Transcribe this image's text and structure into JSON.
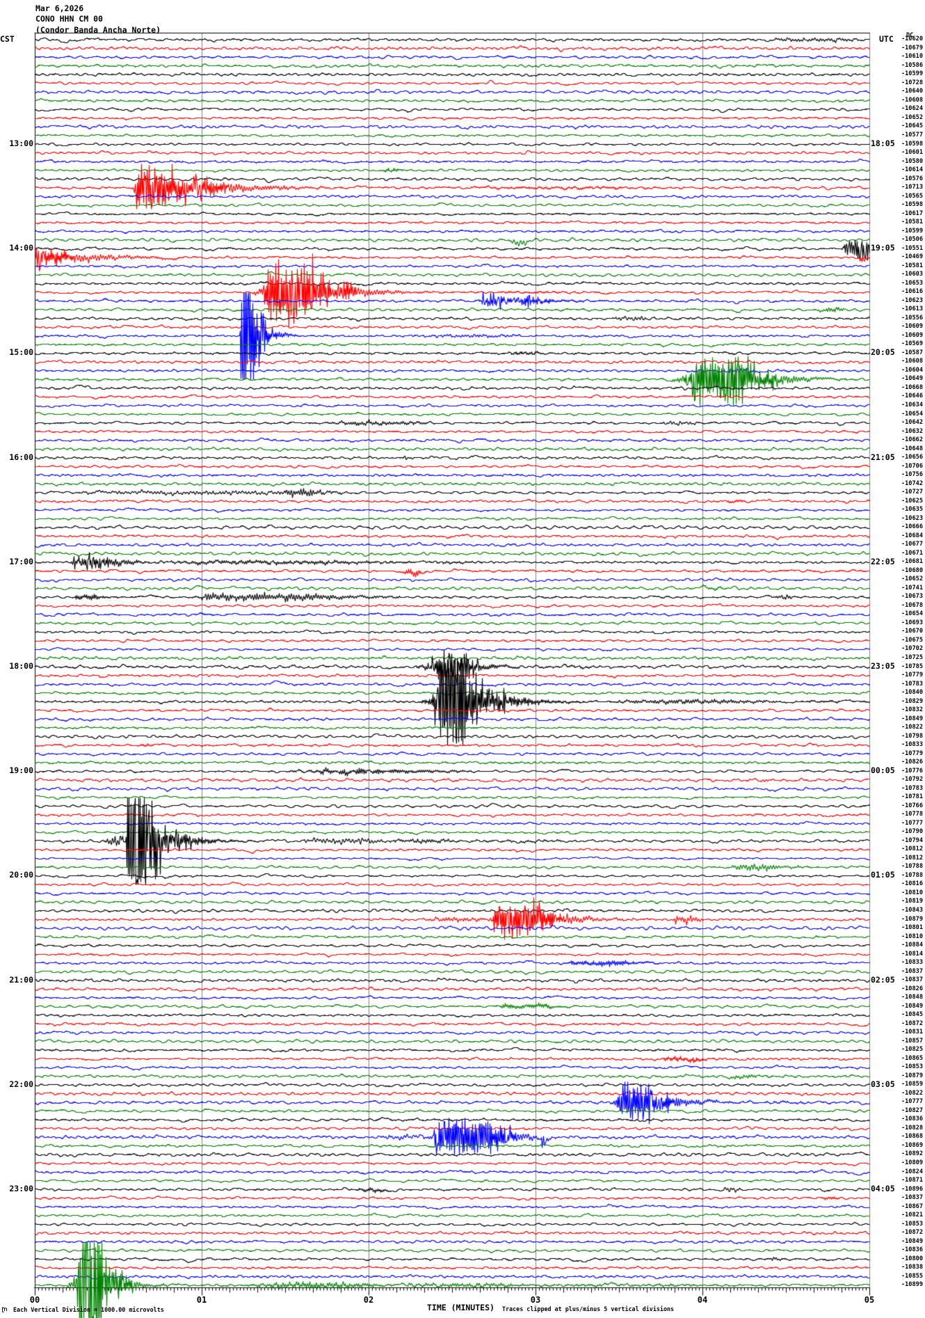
{
  "title": {
    "date": "Mar 6,2026",
    "station_code": "CONO HHN CM 00",
    "station_name": "(Condor Banda Ancha Norte)"
  },
  "left_axis": {
    "timezone": "CST",
    "hour_labels": [
      {
        "row": 12,
        "text": "13:00"
      },
      {
        "row": 24,
        "text": "14:00"
      },
      {
        "row": 36,
        "text": "15:00"
      },
      {
        "row": 48,
        "text": "16:00"
      },
      {
        "row": 60,
        "text": "17:00"
      },
      {
        "row": 72,
        "text": "18:00"
      },
      {
        "row": 84,
        "text": "19:00"
      },
      {
        "row": 96,
        "text": "20:00"
      },
      {
        "row": 108,
        "text": "21:00"
      },
      {
        "row": 120,
        "text": "22:00"
      },
      {
        "row": 132,
        "text": "23:00"
      }
    ]
  },
  "right_axis": {
    "timezone": "UTC",
    "dc_header": "DC",
    "hour_labels": [
      {
        "row": 12,
        "text": "18:05"
      },
      {
        "row": 24,
        "text": "19:05"
      },
      {
        "row": 36,
        "text": "20:05"
      },
      {
        "row": 48,
        "text": "21:05"
      },
      {
        "row": 60,
        "text": "22:05"
      },
      {
        "row": 72,
        "text": "23:05"
      },
      {
        "row": 84,
        "text": "00:05"
      },
      {
        "row": 96,
        "text": "01:05"
      },
      {
        "row": 108,
        "text": "02:05"
      },
      {
        "row": 120,
        "text": "03:05"
      },
      {
        "row": 132,
        "text": "04:05"
      }
    ],
    "dc_values": [
      -10620,
      -10679,
      -10610,
      -10586,
      -10599,
      -10728,
      -10640,
      -10608,
      -10624,
      -10652,
      -10645,
      -10577,
      -10598,
      -10601,
      -10580,
      -10614,
      -10576,
      -10713,
      -10565,
      -10598,
      -10617,
      -10581,
      -10599,
      -10506,
      -10551,
      -10469,
      -10581,
      -10603,
      -10653,
      -10616,
      -10623,
      -10613,
      -10556,
      -10609,
      -10609,
      -10569,
      -10587,
      -10608,
      -10604,
      -10649,
      -10668,
      -10646,
      -10634,
      -10654,
      -10642,
      -10632,
      -10662,
      -10648,
      -10656,
      -10706,
      -10756,
      -10742,
      -10727,
      -10625,
      -10635,
      -10623,
      -10666,
      -10684,
      -10677,
      -10671,
      -10681,
      -10680,
      -10652,
      -10741,
      -10673,
      -10678,
      -10654,
      -10693,
      -10670,
      -10675,
      -10702,
      -10725,
      -10785,
      -10779,
      -10783,
      -10840,
      -10829,
      -10832,
      -10849,
      -10822,
      -10798,
      -10833,
      -10779,
      -10826,
      -10776,
      -10792,
      -10783,
      -10781,
      -10766,
      -10778,
      -10777,
      -10790,
      -10794,
      -10812,
      -10812,
      -10788,
      -10788,
      -10816,
      -10810,
      -10819,
      -10843,
      -10879,
      -10801,
      -10810,
      -10884,
      -10814,
      -10833,
      -10837,
      -10837,
      -10826,
      -10848,
      -10849,
      -10845,
      -10872,
      -10831,
      -10857,
      -10825,
      -10865,
      -10853,
      -10879,
      -10859,
      -10822,
      -10777,
      -10827,
      -10836,
      -10828,
      -10868,
      -10869,
      -10892,
      -10809,
      -10824,
      -10871,
      -10896,
      -10837,
      -10867,
      -10821,
      -10853,
      -10872,
      -10849,
      -10836,
      -10800,
      -10838,
      -10855,
      -10899
    ]
  },
  "x_axis": {
    "title": "TIME (MINUTES)",
    "minute_labels": [
      "00",
      "01",
      "02",
      "03",
      "04",
      "05"
    ]
  },
  "footer": {
    "left": "Each Vertical Division = 1000.00 microvolts",
    "right": "Traces clipped at plus/minus 5 vertical divisions"
  },
  "colors": {
    "trace_cycle": [
      "#000000",
      "#ff0000",
      "#0000ff",
      "#008000"
    ],
    "grid": "#808080",
    "frame": "#000000",
    "background": "#ffffff"
  },
  "chart_data": {
    "type": "seismogram-helicorder",
    "rows": 144,
    "minutes_per_row": 5,
    "row_color_cycle": [
      "black",
      "red",
      "blue",
      "green"
    ],
    "clip_divisions": 5,
    "division_microvolts": 1000.0,
    "noise": {
      "amp_divisions": 0.17,
      "jitter_divisions": 0.05
    },
    "events": [
      {
        "row": 0,
        "type": "fuzz",
        "t0": 4.354,
        "t1": 5.0,
        "amp": 0.24
      },
      {
        "row": 15,
        "type": "fuzz",
        "t0": 2.079,
        "t1": 2.21,
        "amp": 0.32
      },
      {
        "row": 17,
        "type": "burst",
        "t0": 0.575,
        "t1": 2.54,
        "amp": 2.72,
        "attack": 0.03,
        "sustain": 0.16,
        "tau": 0.3
      },
      {
        "row": 17,
        "type": "fuzz",
        "t0": 2.54,
        "t1": 3.9,
        "amp": 0.16
      },
      {
        "row": 23,
        "type": "fuzz",
        "t0": 2.84,
        "t1": 2.96,
        "amp": 0.55,
        "bias": -0.35
      },
      {
        "row": 24,
        "type": "burst",
        "t0": 4.825,
        "t1": 5.0,
        "amp": 1.44,
        "attack": 0.03,
        "sustain": 0.15,
        "tau": 0.3
      },
      {
        "row": 25,
        "type": "burst",
        "t0": 0.0,
        "t1": 1.2,
        "amp": 1.6,
        "attack": 0.005,
        "sustain": 0.03,
        "tau": 0.28
      },
      {
        "row": 25,
        "type": "burst",
        "t0": 4.935,
        "t1": 5.0,
        "amp": 0.9,
        "attack": 0.008,
        "sustain": 0.012,
        "tau": 0.02,
        "bias": -0.3
      },
      {
        "row": 29,
        "type": "burst",
        "t0": 1.304,
        "t1": 2.75,
        "amp": 3.6,
        "attack": 0.09,
        "sustain": 0.26,
        "tau": 0.18
      },
      {
        "row": 29,
        "type": "fuzz",
        "t0": 2.75,
        "t1": 3.25,
        "amp": 0.15
      },
      {
        "row": 30,
        "type": "burst",
        "t0": 2.642,
        "t1": 3.55,
        "amp": 1.0,
        "attack": 0.04,
        "sustain": 0.25,
        "tau": 0.13
      },
      {
        "row": 31,
        "type": "fuzz",
        "t0": 4.696,
        "t1": 4.86,
        "amp": 0.36
      },
      {
        "row": 32,
        "type": "fuzz",
        "t0": 3.454,
        "t1": 3.69,
        "amp": 0.3
      },
      {
        "row": 34,
        "type": "burst",
        "t0": 1.225,
        "t1": 2.05,
        "amp": 5.0,
        "attack": 0.006,
        "sustain": 0.08,
        "tau": 0.07
      },
      {
        "row": 34,
        "type": "fuzz",
        "t0": 2.25,
        "t1": 2.95,
        "amp": 0.2
      },
      {
        "row": 36,
        "type": "fuzz",
        "t0": 2.833,
        "t1": 3.042,
        "amp": 0.3
      },
      {
        "row": 38,
        "type": "fuzz",
        "t0": 4.125,
        "t1": 4.34,
        "amp": 0.3
      },
      {
        "row": 39,
        "type": "burst",
        "t0": 3.817,
        "t1": 4.86,
        "amp": 3.0,
        "attack": 0.13,
        "sustain": 0.27,
        "tau": 0.18
      },
      {
        "row": 44,
        "type": "fuzz",
        "t0": 1.729,
        "t1": 2.4,
        "amp": 0.3
      },
      {
        "row": 44,
        "type": "fuzz",
        "t0": 3.75,
        "t1": 3.99,
        "amp": 0.24
      },
      {
        "row": 48,
        "type": "fuzz",
        "t0": 2.183,
        "t1": 2.27,
        "amp": 0.24
      },
      {
        "row": 52,
        "type": "fuzz",
        "t0": 0.19,
        "t1": 1.92,
        "amp": 0.26
      },
      {
        "row": 52,
        "type": "burst",
        "t0": 1.479,
        "t1": 1.9,
        "amp": 0.72,
        "attack": 0.03,
        "sustain": 0.1,
        "tau": 0.09
      },
      {
        "row": 53,
        "type": "fuzz",
        "t0": 4.146,
        "t1": 4.26,
        "amp": 0.28
      },
      {
        "row": 60,
        "type": "burst",
        "t0": 0.213,
        "t1": 1.0,
        "amp": 1.15,
        "attack": 0.015,
        "sustain": 0.12,
        "tau": 0.2
      },
      {
        "row": 60,
        "type": "fuzz",
        "t0": 0.4,
        "t1": 2.3,
        "amp": 0.28
      },
      {
        "row": 60,
        "type": "fuzz",
        "t0": 2.3,
        "t1": 2.75,
        "amp": 0.15
      },
      {
        "row": 61,
        "type": "burst",
        "t0": 2.192,
        "t1": 2.4,
        "amp": 0.64,
        "attack": 0.025,
        "sustain": 0.06,
        "tau": 0.05,
        "bias": -0.2
      },
      {
        "row": 63,
        "type": "fuzz",
        "t0": 3.979,
        "t1": 4.133,
        "amp": 0.22
      },
      {
        "row": 64,
        "type": "burst",
        "t0": 0.229,
        "t1": 0.5,
        "amp": 0.56,
        "attack": 0.015,
        "sustain": 0.08,
        "tau": 0.07
      },
      {
        "row": 64,
        "type": "burst",
        "t0": 0.933,
        "t1": 2.2,
        "amp": 0.72,
        "attack": 0.1,
        "sustain": 0.5,
        "tau": 0.32
      },
      {
        "row": 64,
        "type": "fuzz",
        "t0": 4.417,
        "t1": 4.56,
        "amp": 0.36
      },
      {
        "row": 72,
        "type": "burst",
        "t0": 2.275,
        "t1": 3.0,
        "amp": 2.08,
        "attack": 0.13,
        "sustain": 0.13,
        "tau": 0.12
      },
      {
        "row": 72,
        "type": "fuzz",
        "t0": 3.0,
        "t1": 3.4,
        "amp": 0.15
      },
      {
        "row": 76,
        "type": "burst",
        "t0": 2.313,
        "t1": 3.4,
        "amp": 4.4,
        "attack": 0.11,
        "sustain": 0.16,
        "tau": 0.18
      },
      {
        "row": 76,
        "type": "fuzz",
        "t0": 3.4,
        "t1": 4.45,
        "amp": 0.32
      },
      {
        "row": 76,
        "type": "fuzz",
        "t0": 4.45,
        "t1": 5.0,
        "amp": 0.12
      },
      {
        "row": 81,
        "type": "fuzz",
        "t0": 0.629,
        "t1": 0.71,
        "amp": 0.24
      },
      {
        "row": 84,
        "type": "fuzz",
        "t0": 1.479,
        "t1": 2.63,
        "amp": 0.3
      },
      {
        "row": 84,
        "type": "burst",
        "t0": 1.633,
        "t1": 2.2,
        "amp": 0.52,
        "attack": 0.06,
        "sustain": 0.15,
        "tau": 0.22
      },
      {
        "row": 85,
        "type": "fuzz",
        "t0": 4.342,
        "t1": 4.42,
        "amp": 0.24
      },
      {
        "row": 92,
        "type": "fuzz",
        "t0": 0.417,
        "t1": 0.58,
        "amp": 0.85
      },
      {
        "row": 92,
        "type": "burst",
        "t0": 0.53,
        "t1": 1.58,
        "amp": 5.0,
        "attack": 0.02,
        "sustain": 0.115,
        "tau": 0.15
      },
      {
        "row": 92,
        "type": "fuzz",
        "t0": 1.58,
        "t1": 2.1,
        "amp": 0.42
      },
      {
        "row": 92,
        "type": "fuzz",
        "t0": 2.1,
        "t1": 2.55,
        "amp": 0.25
      },
      {
        "row": 92,
        "type": "fuzz",
        "t0": 2.55,
        "t1": 3.3,
        "amp": 0.13
      },
      {
        "row": 95,
        "type": "burst",
        "t0": 4.142,
        "t1": 4.6,
        "amp": 0.64,
        "attack": 0.08,
        "sustain": 0.15,
        "tau": 0.11
      },
      {
        "row": 101,
        "type": "fuzz",
        "t0": 2.333,
        "t1": 2.71,
        "amp": 0.3
      },
      {
        "row": 101,
        "type": "burst",
        "t0": 2.708,
        "t1": 3.8,
        "amp": 2.24,
        "attack": 0.05,
        "sustain": 0.22,
        "tau": 0.18
      },
      {
        "row": 101,
        "type": "burst",
        "t0": 3.808,
        "t1": 4.0,
        "amp": 0.72,
        "attack": 0.03,
        "sustain": 0.09,
        "tau": 0.06
      },
      {
        "row": 106,
        "type": "burst",
        "t0": 3.15,
        "t1": 3.73,
        "amp": 0.56,
        "attack": 0.08,
        "sustain": 0.25,
        "tau": 0.11
      },
      {
        "row": 111,
        "type": "burst",
        "t0": 2.713,
        "t1": 3.25,
        "amp": 0.48,
        "attack": 0.1,
        "sustain": 0.2,
        "tau": 0.11
      },
      {
        "row": 117,
        "type": "burst",
        "t0": 3.733,
        "t1": 4.1,
        "amp": 0.52,
        "attack": 0.05,
        "sustain": 0.15,
        "tau": 0.07
      },
      {
        "row": 119,
        "type": "fuzz",
        "t0": 4.15,
        "t1": 4.35,
        "amp": 0.32
      },
      {
        "row": 122,
        "type": "burst",
        "t0": 3.442,
        "t1": 4.35,
        "amp": 2.16,
        "attack": 0.06,
        "sustain": 0.17,
        "tau": 0.16
      },
      {
        "row": 122,
        "type": "fuzz",
        "t0": 4.35,
        "t1": 4.65,
        "amp": 0.15
      },
      {
        "row": 126,
        "type": "fuzz",
        "t0": 2.067,
        "t1": 2.36,
        "amp": 0.3
      },
      {
        "row": 126,
        "type": "burst",
        "t0": 2.354,
        "t1": 3.3,
        "amp": 2.4,
        "attack": 0.05,
        "sustain": 0.33,
        "tau": 0.13
      },
      {
        "row": 126,
        "type": "burst",
        "t0": 3.02,
        "t1": 3.1,
        "amp": 1.2,
        "attack": 0.01,
        "sustain": 0.015,
        "tau": 0.02,
        "bias": -0.5
      },
      {
        "row": 132,
        "type": "fuzz",
        "t0": 1.917,
        "t1": 2.125,
        "amp": 0.32
      },
      {
        "row": 132,
        "type": "fuzz",
        "t0": 4.113,
        "t1": 4.23,
        "amp": 0.3
      },
      {
        "row": 133,
        "type": "fuzz",
        "t0": 4.7,
        "t1": 4.82,
        "amp": 0.24
      },
      {
        "row": 140,
        "type": "fuzz",
        "t0": 4.396,
        "t1": 4.48,
        "amp": 0.3
      },
      {
        "row": 143,
        "type": "burst",
        "t0": 0.196,
        "t1": 1.25,
        "amp": 5.0,
        "attack": 0.07,
        "sustain": 0.13,
        "tau": 0.1
      },
      {
        "row": 143,
        "type": "fuzz",
        "t0": 1.25,
        "t1": 2.1,
        "amp": 0.5
      },
      {
        "row": 143,
        "type": "fuzz",
        "t0": 2.1,
        "t1": 3.0,
        "amp": 0.32
      },
      {
        "row": 143,
        "type": "fuzz",
        "t0": 2.92,
        "t1": 4.2,
        "amp": 0.15
      }
    ]
  }
}
